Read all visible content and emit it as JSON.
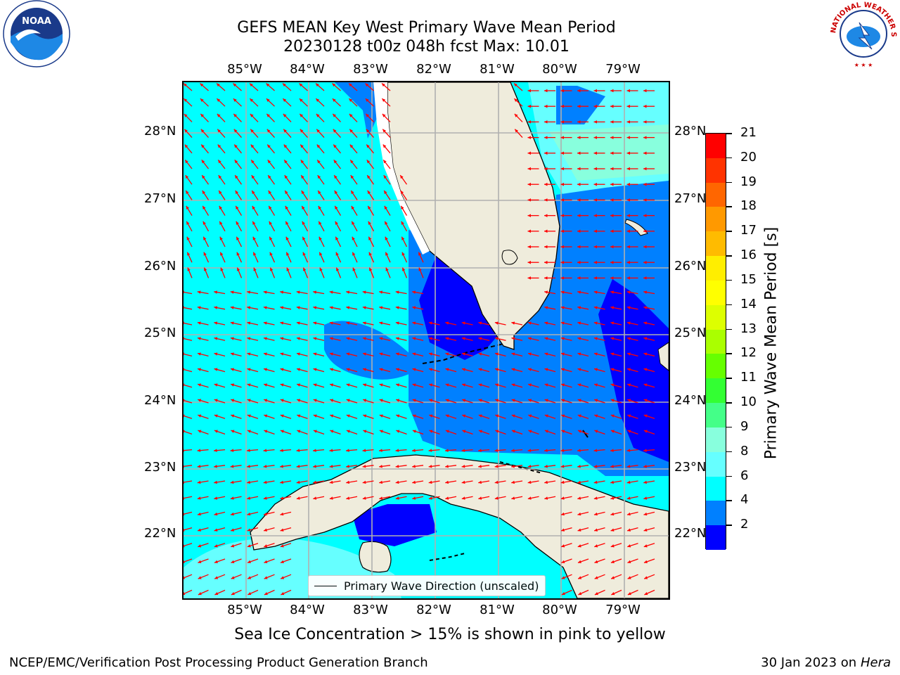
{
  "title": {
    "line1": "GEFS MEAN Key West Primary Wave Mean Period",
    "line2": "20230128 t00z 048h fcst   Max: 10.01"
  },
  "lon_ticks": [
    "85°W",
    "84°W",
    "83°W",
    "82°W",
    "81°W",
    "80°W",
    "79°W"
  ],
  "lat_ticks": [
    "28°N",
    "27°N",
    "26°N",
    "25°N",
    "24°N",
    "23°N",
    "22°N"
  ],
  "colorbar": {
    "label": "Primary Wave Mean Period [s]",
    "ticks": [
      "21",
      "20",
      "19",
      "18",
      "17",
      "16",
      "15",
      "14",
      "13",
      "12",
      "11",
      "10",
      "9",
      "8",
      "6",
      "4",
      "2"
    ],
    "colors": [
      "#ff0000",
      "#ff3300",
      "#ff6600",
      "#ff9900",
      "#ffbb00",
      "#ffee00",
      "#ffff00",
      "#ddff00",
      "#aaff00",
      "#66ff00",
      "#33ff33",
      "#44ff88",
      "#88ffdd",
      "#66ffff",
      "#00ffff",
      "#0080ff",
      "#0000ff"
    ]
  },
  "legend": {
    "label": "Primary Wave Direction (unscaled)"
  },
  "note": "Sea Ice Concentration > 15% is shown in pink to yellow",
  "footer": {
    "left": "NCEP/EMC/Verification Post Processing Product Generation Branch",
    "right_prefix": "30 Jan 2023 on ",
    "right_host": "Hera"
  },
  "logos": {
    "noaa": "NOAA",
    "nws": "NATIONAL WEATHER SERVICE"
  },
  "colors": {
    "land": "#efecdc",
    "arrow": "#ff0000",
    "grid": "#b0b0b0",
    "band_2_4": "#0000ff",
    "band_4_6": "#0080ff",
    "band_6_8": "#00ffff",
    "band_8_9": "#66ffff",
    "band_9_10": "#88ffdd"
  }
}
